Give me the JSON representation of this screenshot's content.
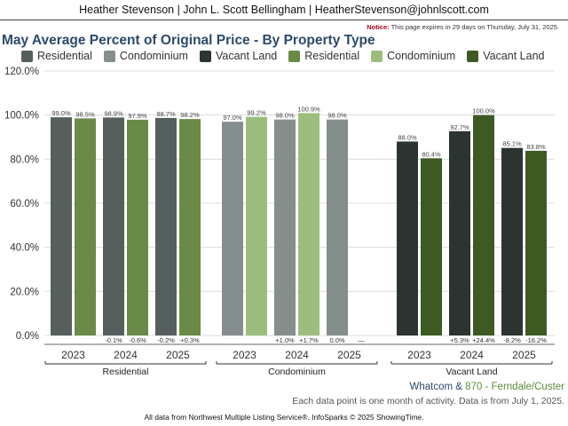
{
  "header": {
    "text": "Heather Stevenson | John L. Scott Bellingham | HeatherStevenson@johnlscott.com"
  },
  "notice": {
    "label": "Notice:",
    "text": " This page expires in 29 days on Thursday, July 31, 2025."
  },
  "title": "May Average Percent of Original Price - By Property Type",
  "legend": [
    {
      "label": "Residential",
      "color": "#545f5e"
    },
    {
      "label": "Condominium",
      "color": "#838e8d"
    },
    {
      "label": "Vacant Land",
      "color": "#2c3432"
    },
    {
      "label": "Residential",
      "color": "#6a8b48"
    },
    {
      "label": "Condominium",
      "color": "#9cbe7c"
    },
    {
      "label": "Vacant Land",
      "color": "#3d5a23"
    }
  ],
  "footer": {
    "area_a": "Whatcom",
    "amp": " & ",
    "area_b": "870 - Ferndale/Custer",
    "note": "Each data point is one month of activity. Data is from July 1, 2025.",
    "source": "All data from Northwest Multiple Listing Service®. InfoSparks © 2025 ShowingTime."
  },
  "chart_data": {
    "type": "bar",
    "title": "May Average Percent of Original Price - By Property Type",
    "ylim": [
      0,
      120
    ],
    "yticks": [
      "0.0%",
      "20.0%",
      "40.0%",
      "60.0%",
      "80.0%",
      "100.0%",
      "120.0%"
    ],
    "grid": true,
    "legend_position": "top",
    "groups": [
      {
        "name": "Residential",
        "years": [
          {
            "year": "2023",
            "a": 99.0,
            "b": 98.5,
            "a_label": "99.0%",
            "b_label": "98.5%",
            "a_change": "",
            "b_change": ""
          },
          {
            "year": "2024",
            "a": 98.9,
            "b": 97.9,
            "a_label": "98.9%",
            "b_label": "97.9%",
            "a_change": "-0.1%",
            "b_change": "-0.6%"
          },
          {
            "year": "2025",
            "a": 98.7,
            "b": 98.2,
            "a_label": "98.7%",
            "b_label": "98.2%",
            "a_change": "-0.2%",
            "b_change": "+0.3%"
          }
        ],
        "color_a": "#545f5e",
        "color_b": "#6a8b48"
      },
      {
        "name": "Condominium",
        "years": [
          {
            "year": "2023",
            "a": 97.0,
            "b": 99.2,
            "a_label": "97.0%",
            "b_label": "99.2%",
            "a_change": "",
            "b_change": ""
          },
          {
            "year": "2024",
            "a": 98.0,
            "b": 100.9,
            "a_label": "98.0%",
            "b_label": "100.9%",
            "a_change": "+1.0%",
            "b_change": "+1.7%"
          },
          {
            "year": "2025",
            "a": 98.0,
            "b": null,
            "a_label": "98.0%",
            "b_label": "",
            "a_change": "0.0%",
            "b_change": "—"
          }
        ],
        "color_a": "#838e8d",
        "color_b": "#9cbe7c"
      },
      {
        "name": "Vacant Land",
        "years": [
          {
            "year": "2023",
            "a": 88.0,
            "b": 80.4,
            "a_label": "88.0%",
            "b_label": "80.4%",
            "a_change": "",
            "b_change": ""
          },
          {
            "year": "2024",
            "a": 92.7,
            "b": 100.0,
            "a_label": "92.7%",
            "b_label": "100.0%",
            "a_change": "+5.3%",
            "b_change": "+24.4%"
          },
          {
            "year": "2025",
            "a": 85.1,
            "b": 83.8,
            "a_label": "85.1%",
            "b_label": "83.8%",
            "a_change": "-8.2%",
            "b_change": "-16.2%"
          }
        ],
        "color_a": "#2c3432",
        "color_b": "#3d5a23"
      }
    ]
  }
}
